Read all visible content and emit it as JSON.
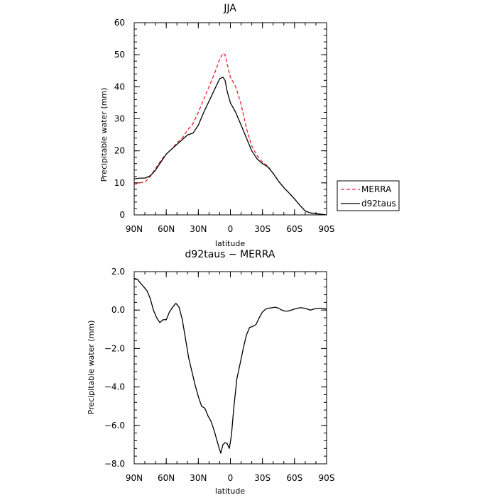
{
  "chart_data": [
    {
      "type": "line",
      "title": "JJA",
      "xlabel": "latitude",
      "ylabel": "Precipitable water (mm)",
      "xlim": [
        90,
        -90
      ],
      "ylim": [
        0,
        60
      ],
      "xticks": [
        90,
        60,
        30,
        0,
        -30,
        -60,
        -90
      ],
      "xtick_labels": [
        "90N",
        "60N",
        "30N",
        "0",
        "30S",
        "60S",
        "90S"
      ],
      "yticks": [
        0,
        10,
        20,
        30,
        40,
        50,
        60
      ],
      "ytick_labels": [
        "0",
        "10",
        "20",
        "30",
        "40",
        "50",
        "60"
      ],
      "legend_position": "outside-right",
      "series": [
        {
          "name": "MERRA",
          "color": "#e8202a",
          "dash": "dashed",
          "x": [
            90,
            85,
            80,
            75,
            70,
            65,
            60,
            55,
            50,
            45,
            40,
            35,
            30,
            25,
            20,
            15,
            10,
            7,
            5,
            3,
            0,
            -5,
            -10,
            -15,
            -20,
            -25,
            -30,
            -35,
            -40,
            -45,
            -50,
            -55,
            -60,
            -65,
            -70,
            -75,
            -80,
            -85,
            -90
          ],
          "values": [
            9.5,
            10,
            10.2,
            12,
            14.5,
            17,
            19,
            20.5,
            22.5,
            24,
            26.5,
            28.5,
            32,
            36,
            40,
            44,
            48.5,
            50.5,
            50,
            47,
            43,
            40,
            34.5,
            27,
            21.5,
            18.5,
            16.5,
            15.2,
            13,
            10.5,
            8.5,
            6.8,
            5,
            3,
            1.2,
            0.6,
            0.4,
            0.2,
            0
          ]
        },
        {
          "name": "d92taus",
          "color": "#000000",
          "dash": "solid",
          "x": [
            90,
            85,
            80,
            75,
            70,
            65,
            60,
            55,
            50,
            45,
            40,
            35,
            30,
            25,
            20,
            15,
            10,
            7,
            5,
            3,
            0,
            -5,
            -10,
            -15,
            -20,
            -25,
            -30,
            -35,
            -40,
            -45,
            -50,
            -55,
            -60,
            -65,
            -70,
            -75,
            -80,
            -85,
            -90
          ],
          "values": [
            11.2,
            11.5,
            11.5,
            12.2,
            14,
            16.5,
            19,
            20.5,
            22,
            23.5,
            25,
            25.5,
            28,
            32,
            35.5,
            39,
            42.5,
            43,
            42,
            38.5,
            35,
            32,
            28,
            24,
            20,
            17.5,
            16,
            15,
            13,
            10.5,
            8.5,
            6.8,
            5,
            3,
            1.2,
            0.6,
            0.4,
            0.2,
            0
          ]
        }
      ]
    },
    {
      "type": "line",
      "title": "d92taus − MERRA",
      "xlabel": "latitude",
      "ylabel": "Precipitable water (mm)",
      "xlim": [
        90,
        -90
      ],
      "ylim": [
        -8,
        2
      ],
      "xticks": [
        90,
        60,
        30,
        0,
        -30,
        -60,
        -90
      ],
      "xtick_labels": [
        "90N",
        "60N",
        "30N",
        "0",
        "30S",
        "60S",
        "90S"
      ],
      "yticks": [
        -8,
        -6,
        -4,
        -2,
        0,
        2
      ],
      "ytick_labels": [
        "−8.0",
        "−6.0",
        "−4.0",
        "−2.0",
        "0.0",
        "2.0"
      ],
      "series": [
        {
          "color": "#000000",
          "dash": "solid",
          "x": [
            90,
            87,
            84,
            81,
            78,
            75,
            72,
            69,
            66,
            63,
            60,
            57,
            54,
            51,
            48,
            45,
            42,
            39,
            36,
            33,
            30,
            27,
            24,
            21,
            18,
            15,
            12,
            9,
            7,
            5,
            3,
            1,
            -1,
            -3,
            -6,
            -9,
            -12,
            -15,
            -18,
            -21,
            -24,
            -27,
            -30,
            -33,
            -36,
            -39,
            -42,
            -45,
            -48,
            -51,
            -54,
            -57,
            -60,
            -63,
            -66,
            -69,
            -72,
            -75,
            -78,
            -81,
            -84,
            -87,
            -90
          ],
          "values": [
            1.65,
            1.6,
            1.4,
            1.2,
            1.0,
            0.6,
            0.0,
            -0.4,
            -0.65,
            -0.5,
            -0.5,
            -0.1,
            0.15,
            0.35,
            0.15,
            -0.5,
            -1.5,
            -2.5,
            -3.2,
            -3.9,
            -4.5,
            -5.0,
            -5.1,
            -5.5,
            -5.8,
            -6.3,
            -6.9,
            -7.45,
            -7.0,
            -6.9,
            -6.95,
            -7.2,
            -6.5,
            -5.2,
            -3.6,
            -2.8,
            -2.0,
            -1.3,
            -0.9,
            -0.85,
            -0.75,
            -0.4,
            -0.1,
            0.05,
            0.1,
            0.12,
            0.15,
            0.1,
            0.0,
            -0.05,
            -0.05,
            0.0,
            0.05,
            0.1,
            0.12,
            0.1,
            0.05,
            0.0,
            0.05,
            0.08,
            0.1,
            0.08,
            0.05
          ]
        }
      ]
    }
  ]
}
